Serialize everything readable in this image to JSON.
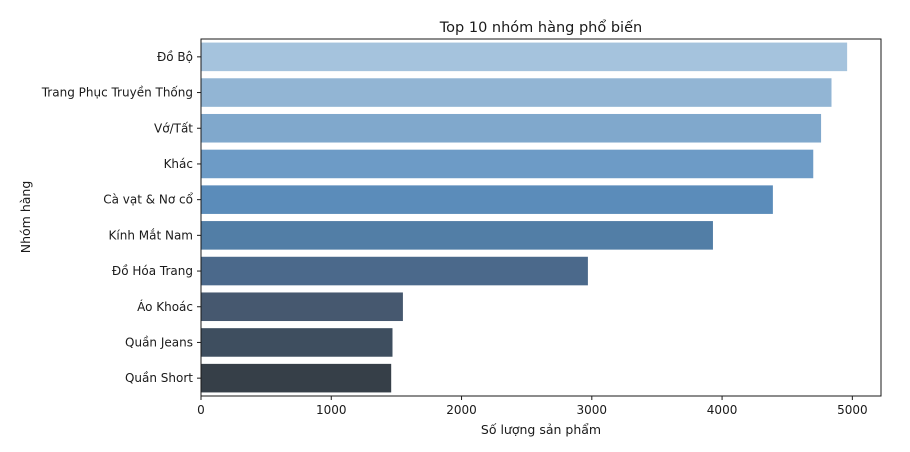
{
  "chart_data": {
    "type": "bar",
    "orientation": "horizontal",
    "title": "Top 10 nhóm hàng phổ biến",
    "xlabel": "Số lượng sản phẩm",
    "ylabel": "Nhóm hàng",
    "xlim": [
      0,
      5220
    ],
    "xticks": [
      0,
      1000,
      2000,
      3000,
      4000,
      5000
    ],
    "xtick_labels": [
      "0",
      "1000",
      "2000",
      "3000",
      "4000",
      "5000"
    ],
    "grid": false,
    "categories": [
      "Đồ Bộ",
      "Trang Phục Truyền Thống",
      "Vớ/Tất",
      "Khác",
      "Cà vạt & Nơ cổ",
      "Kính Mắt Nam",
      "Đồ Hóa Trang",
      "Áo Khoác",
      "Quần Jeans",
      "Quần Short"
    ],
    "values": [
      4960,
      4840,
      4760,
      4700,
      4390,
      3930,
      2970,
      1550,
      1470,
      1460
    ],
    "colors": [
      "#a5c3dd",
      "#92b5d4",
      "#80a8cc",
      "#6d9bc6",
      "#5b8cba",
      "#527ea6",
      "#4b698b",
      "#46586f",
      "#3e4e5f",
      "#363f48"
    ]
  }
}
